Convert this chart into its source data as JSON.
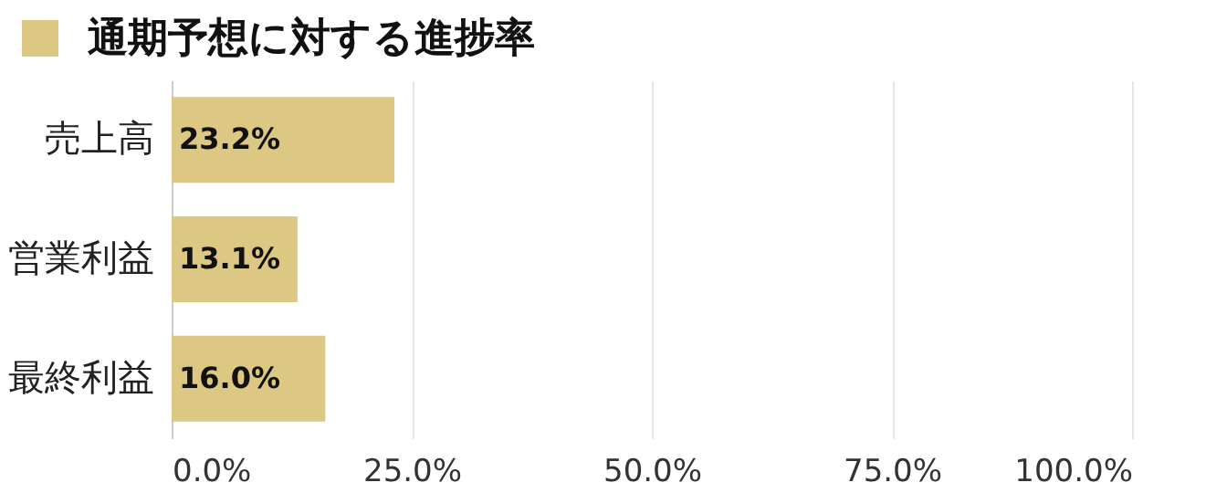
{
  "chart_data": {
    "type": "bar",
    "orientation": "horizontal",
    "title": "通期予想に対する進捗率",
    "categories": [
      "売上高",
      "営業利益",
      "最終利益"
    ],
    "values": [
      23.2,
      13.1,
      16.0
    ],
    "value_labels": [
      "23.2%",
      "13.1%",
      "16.0%"
    ],
    "color": "#dcc883",
    "xlim": [
      0,
      100
    ],
    "xticks": [
      {
        "value": 0,
        "label": "0.0%"
      },
      {
        "value": 25,
        "label": "25.0%"
      },
      {
        "value": 50,
        "label": "50.0%"
      },
      {
        "value": 75,
        "label": "75.0%"
      },
      {
        "value": 100,
        "label": "100.0%"
      }
    ],
    "grid": "x"
  }
}
